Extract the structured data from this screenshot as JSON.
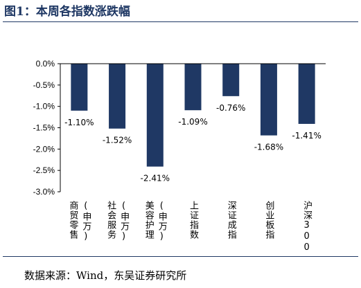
{
  "header": {
    "title": "图1：本周各指数涨跌幅"
  },
  "footer": {
    "source": "数据来源：Wind，东吴证券研究所"
  },
  "colors": {
    "bar": "#1f3864",
    "accent": "#1f3864"
  },
  "chart_data": {
    "type": "bar",
    "title": "图1：本周各指数涨跌幅",
    "xlabel": "",
    "ylabel": "",
    "categories": [
      "商贸零售(申万)",
      "社会服务(申万)",
      "美容护理(申万)",
      "上证指数",
      "深证成指",
      "创业板指",
      "沪深300"
    ],
    "category_lines": [
      [
        "商贸零售",
        "(申万)"
      ],
      [
        "社会服务",
        "(申万)"
      ],
      [
        "美容护理",
        "(申万)"
      ],
      [
        "上证指数"
      ],
      [
        "深证成指"
      ],
      [
        "创业板指"
      ],
      [
        "沪深300"
      ]
    ],
    "values": [
      -1.1,
      -1.52,
      -2.41,
      -1.09,
      -0.76,
      -1.68,
      -1.41
    ],
    "value_labels": [
      "-1.10%",
      "-1.52%",
      "-2.41%",
      "-1.09%",
      "-0.76%",
      "-1.68%",
      "-1.41%"
    ],
    "y_ticks": [
      0,
      -0.5,
      -1.0,
      -1.5,
      -2.0,
      -2.5,
      -3.0
    ],
    "y_tick_labels": [
      "0.0%",
      "-0.5%",
      "-1.0%",
      "-1.5%",
      "-2.0%",
      "-2.5%",
      "-3.0%"
    ],
    "ylim": [
      -3.0,
      0
    ],
    "grid": false,
    "legend": "none"
  }
}
